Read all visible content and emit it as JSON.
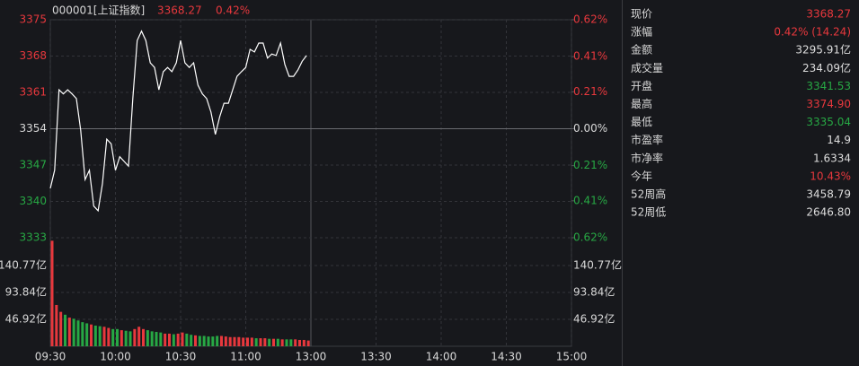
{
  "header": {
    "code": "000001[上证指数]",
    "price": "3368.27",
    "change": "0.42%"
  },
  "chart_data": [
    {
      "type": "line",
      "color": "#ffffff",
      "x": [
        0,
        2,
        4,
        6,
        8,
        10,
        12,
        14,
        16,
        18,
        20,
        22,
        24,
        26,
        28,
        30,
        32,
        34,
        36,
        38,
        40,
        42,
        44,
        46,
        48,
        50,
        52,
        54,
        56,
        58,
        60,
        62,
        64,
        66,
        68,
        70,
        72,
        74,
        76,
        78,
        80,
        82,
        84,
        86,
        88,
        90,
        92,
        94,
        96,
        98,
        100,
        102,
        104,
        106,
        108,
        110,
        112,
        114,
        116,
        118
      ],
      "values": [
        3342.5,
        3346.0,
        3361.5,
        3360.7,
        3361.5,
        3360.7,
        3359.8,
        3353.7,
        3344.2,
        3346.0,
        3339.1,
        3338.2,
        3343.4,
        3352.0,
        3351.1,
        3346.0,
        3348.6,
        3347.7,
        3346.8,
        3359.8,
        3371.0,
        3372.8,
        3371.0,
        3366.7,
        3365.8,
        3361.5,
        3365.0,
        3365.8,
        3365.0,
        3366.7,
        3371.0,
        3366.7,
        3365.8,
        3366.7,
        3362.4,
        3360.7,
        3359.8,
        3357.2,
        3352.9,
        3356.3,
        3358.9,
        3358.9,
        3361.5,
        3364.1,
        3365.0,
        3365.8,
        3369.3,
        3368.8,
        3370.5,
        3370.5,
        3367.6,
        3368.4,
        3368.1,
        3370.5,
        3366.4,
        3364.1,
        3364.1,
        3365.3,
        3367.0,
        3368.1
      ],
      "xlim": [
        0,
        240
      ],
      "xticks": [
        {
          "value": 0,
          "label": "09:30"
        },
        {
          "value": 30,
          "label": "10:00"
        },
        {
          "value": 60,
          "label": "10:30"
        },
        {
          "value": 90,
          "label": "11:00"
        },
        {
          "value": 120,
          "label": "13:00"
        },
        {
          "value": 150,
          "label": "13:30"
        },
        {
          "value": 180,
          "label": "14:00"
        },
        {
          "value": 210,
          "label": "14:30"
        },
        {
          "value": 240,
          "label": "15:00"
        }
      ],
      "ylim": [
        3333,
        3375
      ],
      "yticks": [
        3375,
        3368,
        3361,
        3354,
        3347,
        3340,
        3333
      ],
      "y2lim": [
        -0.62,
        0.62
      ],
      "y2ticks": [
        {
          "value": 0.62,
          "label": "0.62%"
        },
        {
          "value": 0.41,
          "label": "0.41%"
        },
        {
          "value": 0.21,
          "label": "0.21%"
        },
        {
          "value": 0,
          "label": "0.00%"
        },
        {
          "value": -0.21,
          "label": "0.21%"
        },
        {
          "value": -0.41,
          "label": "0.41%"
        },
        {
          "value": -0.62,
          "label": "0.62%"
        }
      ]
    },
    {
      "type": "bar",
      "up_color": "#e8383d",
      "down_color": "#27a844",
      "values": [
        184,
        72,
        60,
        55,
        50,
        48,
        45,
        42,
        40,
        38,
        36,
        35,
        34,
        32,
        30,
        30,
        28,
        27,
        26,
        30,
        34,
        30,
        28,
        26,
        25,
        24,
        22,
        22,
        21,
        22,
        24,
        22,
        20,
        19,
        18,
        18,
        17,
        17,
        18,
        18,
        17,
        16,
        16,
        16,
        15,
        15,
        15,
        14,
        14,
        14,
        13,
        13,
        13,
        12,
        12,
        12,
        12,
        11,
        11,
        10
      ],
      "ylim": [
        0,
        187.69
      ],
      "yticks": [
        {
          "value": 140.77,
          "label": "140.77亿"
        },
        {
          "value": 93.84,
          "label": "93.84亿"
        },
        {
          "value": 46.92,
          "label": "46.92亿"
        }
      ]
    }
  ],
  "panel": {
    "rows": [
      {
        "label": "现价",
        "value": "3368.27",
        "color": "#e8383d"
      },
      {
        "label": "涨幅",
        "value": "0.42% (14.24)",
        "color": "#e8383d"
      },
      {
        "label": "金额",
        "value": "3295.91亿",
        "color": "#dddddd"
      },
      {
        "label": "成交量",
        "value": "234.09亿",
        "color": "#dddddd"
      },
      {
        "label": "开盘",
        "value": "3341.53",
        "color": "#27a844"
      },
      {
        "label": "最高",
        "value": "3374.90",
        "color": "#e8383d"
      },
      {
        "label": "最低",
        "value": "3335.04",
        "color": "#27a844"
      },
      {
        "label": "市盈率",
        "value": "14.9",
        "color": "#dddddd"
      },
      {
        "label": "市净率",
        "value": "1.6334",
        "color": "#dddddd"
      },
      {
        "label": "今年",
        "value": "10.43%",
        "color": "#e8383d"
      },
      {
        "label": "52周高",
        "value": "3458.79",
        "color": "#dddddd"
      },
      {
        "label": "52周低",
        "value": "2646.80",
        "color": "#dddddd"
      }
    ]
  }
}
